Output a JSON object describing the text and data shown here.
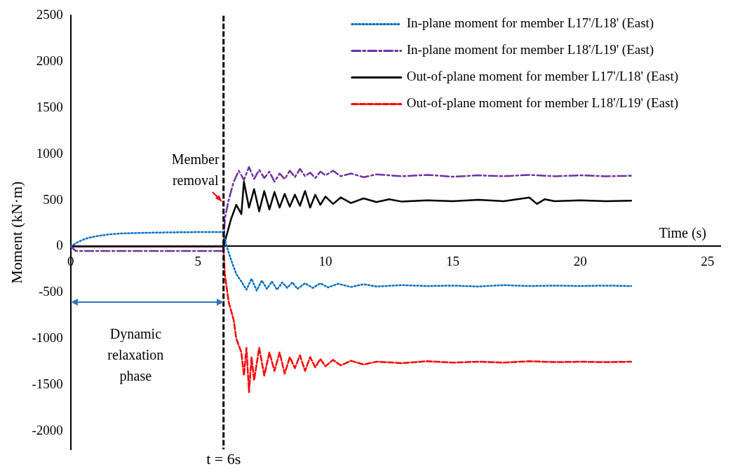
{
  "chart_data": {
    "type": "line",
    "xlabel": "Time (s)",
    "ylabel": "Moment (kN·m)",
    "xlim": [
      0,
      25.5
    ],
    "xticks": [
      0,
      5,
      10,
      15,
      20,
      25
    ],
    "ylim": [
      -2200,
      2500
    ],
    "yticks": [
      -2000,
      -1500,
      -1000,
      -500,
      0,
      500,
      1000,
      1500,
      2000,
      2500
    ],
    "grid": false,
    "legend": "top right",
    "marker": "none",
    "series": [
      {
        "name": "In-plane moment for member L17'/L18' (East)",
        "color": "#0070c0",
        "line_style": "dotted",
        "x": [
          0,
          0.3,
          0.6,
          1,
          1.5,
          2,
          3,
          4,
          5,
          6,
          6.1,
          6.3,
          6.5,
          6.7,
          6.9,
          7.1,
          7.3,
          7.5,
          7.7,
          7.9,
          8.1,
          8.3,
          8.5,
          8.7,
          8.9,
          9.2,
          9.5,
          9.8,
          10.1,
          10.5,
          11,
          11.5,
          12,
          13,
          14,
          15,
          16,
          17,
          18,
          19,
          20,
          21,
          22
        ],
        "values": [
          0,
          50,
          85,
          110,
          130,
          140,
          148,
          152,
          155,
          155,
          20,
          -150,
          -300,
          -380,
          -470,
          -350,
          -480,
          -370,
          -460,
          -380,
          -470,
          -390,
          -450,
          -390,
          -460,
          -400,
          -450,
          -400,
          -445,
          -405,
          -440,
          -410,
          -435,
          -420,
          -430,
          -425,
          -435,
          -420,
          -430,
          -425,
          -430,
          -425,
          -430
        ]
      },
      {
        "name": "In-plane moment for member L18'/L19' (East)",
        "color": "#7030a0",
        "line_style": "dashdot",
        "x": [
          0,
          0.2,
          1,
          2,
          3,
          4,
          5,
          6,
          6.05,
          6.2,
          6.4,
          6.6,
          6.8,
          7,
          7.2,
          7.4,
          7.6,
          7.8,
          8,
          8.2,
          8.4,
          8.6,
          8.8,
          9,
          9.2,
          9.4,
          9.6,
          9.8,
          10,
          10.3,
          10.6,
          11,
          11.5,
          12,
          13,
          14,
          15,
          16,
          17,
          18,
          19,
          20,
          21,
          22
        ],
        "values": [
          0,
          -50,
          -50,
          -50,
          -50,
          -50,
          -50,
          -50,
          300,
          500,
          700,
          820,
          720,
          860,
          730,
          830,
          740,
          810,
          700,
          790,
          730,
          820,
          750,
          840,
          760,
          800,
          740,
          810,
          770,
          820,
          760,
          790,
          750,
          780,
          760,
          775,
          755,
          770,
          760,
          775,
          760,
          770,
          760,
          765
        ]
      },
      {
        "name": "Out-of-plane moment for member L17'/L18' (East)",
        "color": "#000000",
        "line_style": "solid",
        "x": [
          0,
          6,
          6.1,
          6.3,
          6.5,
          6.7,
          6.8,
          7,
          7.2,
          7.4,
          7.6,
          7.8,
          8,
          8.2,
          8.4,
          8.6,
          8.8,
          9,
          9.2,
          9.4,
          9.6,
          9.8,
          10,
          10.3,
          10.6,
          11,
          11.5,
          12,
          12.5,
          13,
          14,
          15,
          16,
          17,
          18,
          18.3,
          18.6,
          19,
          20,
          21,
          22
        ],
        "values": [
          0,
          0,
          100,
          300,
          450,
          350,
          700,
          420,
          620,
          380,
          600,
          400,
          590,
          420,
          570,
          430,
          560,
          440,
          600,
          420,
          560,
          450,
          540,
          460,
          530,
          470,
          520,
          480,
          510,
          485,
          500,
          490,
          505,
          490,
          530,
          460,
          510,
          490,
          500,
          490,
          495
        ]
      },
      {
        "name": "Out-of-plane moment for member L18'/L19' (East)",
        "color": "#ff0000",
        "line_style": "dashed",
        "x": [
          0,
          6,
          6.05,
          6.2,
          6.4,
          6.5,
          6.7,
          6.8,
          6.9,
          7,
          7.1,
          7.2,
          7.4,
          7.6,
          7.8,
          8,
          8.2,
          8.4,
          8.6,
          8.8,
          9,
          9.2,
          9.4,
          9.6,
          9.8,
          10,
          10.3,
          10.6,
          11,
          11.5,
          12,
          13,
          14,
          15,
          16,
          17,
          18,
          19,
          20,
          21,
          22
        ],
        "values": [
          0,
          0,
          -300,
          -600,
          -800,
          -1000,
          -1150,
          -1400,
          -1100,
          -1580,
          -1200,
          -1450,
          -1100,
          -1400,
          -1150,
          -1350,
          -1150,
          -1380,
          -1200,
          -1320,
          -1180,
          -1350,
          -1200,
          -1310,
          -1220,
          -1300,
          -1230,
          -1290,
          -1240,
          -1280,
          -1250,
          -1265,
          -1245,
          -1260,
          -1250,
          -1260,
          -1245,
          -1255,
          -1250,
          -1255,
          -1250
        ]
      }
    ],
    "ref_lines": [
      {
        "axis": "x",
        "value": 6,
        "label": "t = 6s",
        "color": "#000000",
        "line_style": "dashed"
      }
    ],
    "annotations": [
      {
        "text": "Member removal",
        "x": 6,
        "y": 480
      },
      "Dynamic relaxation phase"
    ]
  }
}
